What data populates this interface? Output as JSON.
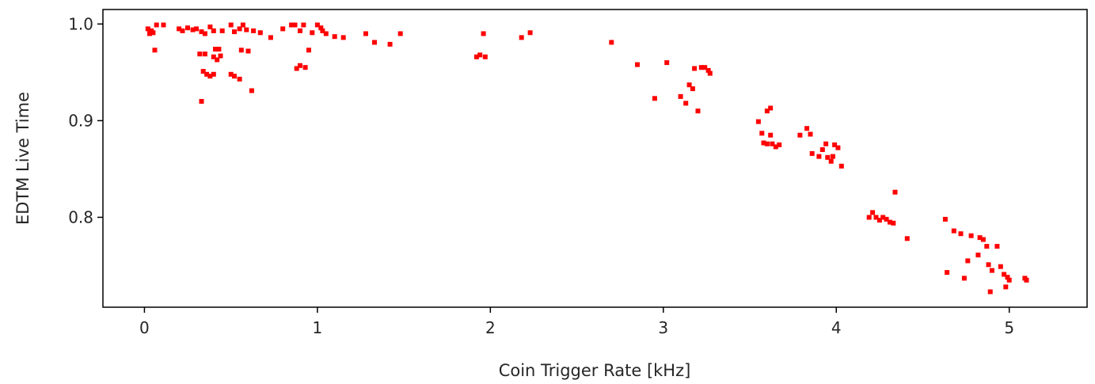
{
  "chart_data": {
    "type": "scatter",
    "xlabel": "Coin Trigger Rate [kHz]",
    "ylabel": "EDTM Live Time",
    "xlim": [
      -0.24,
      5.45
    ],
    "ylim": [
      0.707,
      1.015
    ],
    "xticks": [
      0,
      1,
      2,
      3,
      4,
      5
    ],
    "xtick_labels": [
      "0",
      "1",
      "2",
      "3",
      "4",
      "5"
    ],
    "yticks": [
      0.8,
      0.9,
      1.0
    ],
    "ytick_labels": [
      "0.8",
      "0.9",
      "1.0"
    ],
    "marker_color": "#ff0000",
    "grid": false,
    "legend": "none",
    "points": [
      [
        0.02,
        0.995
      ],
      [
        0.03,
        0.99
      ],
      [
        0.04,
        0.993
      ],
      [
        0.05,
        0.991
      ],
      [
        0.07,
        0.999
      ],
      [
        0.06,
        0.973
      ],
      [
        0.11,
        0.999
      ],
      [
        0.2,
        0.995
      ],
      [
        0.22,
        0.993
      ],
      [
        0.25,
        0.996
      ],
      [
        0.28,
        0.994
      ],
      [
        0.3,
        0.995
      ],
      [
        0.33,
        0.992
      ],
      [
        0.35,
        0.99
      ],
      [
        0.38,
        0.997
      ],
      [
        0.4,
        0.993
      ],
      [
        0.45,
        0.993
      ],
      [
        0.5,
        0.999
      ],
      [
        0.52,
        0.992
      ],
      [
        0.55,
        0.995
      ],
      [
        0.57,
        0.999
      ],
      [
        0.59,
        0.994
      ],
      [
        0.63,
        0.993
      ],
      [
        0.67,
        0.991
      ],
      [
        0.73,
        0.986
      ],
      [
        0.8,
        0.995
      ],
      [
        0.85,
        0.999
      ],
      [
        0.87,
        0.999
      ],
      [
        0.9,
        0.993
      ],
      [
        0.92,
        0.999
      ],
      [
        0.97,
        0.991
      ],
      [
        1.0,
        0.999
      ],
      [
        1.02,
        0.996
      ],
      [
        1.03,
        0.993
      ],
      [
        1.05,
        0.99
      ],
      [
        1.1,
        0.987
      ],
      [
        1.15,
        0.986
      ],
      [
        1.28,
        0.99
      ],
      [
        1.33,
        0.981
      ],
      [
        1.42,
        0.979
      ],
      [
        1.48,
        0.99
      ],
      [
        0.32,
        0.969
      ],
      [
        0.35,
        0.969
      ],
      [
        0.41,
        0.974
      ],
      [
        0.43,
        0.974
      ],
      [
        0.4,
        0.966
      ],
      [
        0.42,
        0.963
      ],
      [
        0.44,
        0.967
      ],
      [
        0.34,
        0.951
      ],
      [
        0.36,
        0.948
      ],
      [
        0.38,
        0.946
      ],
      [
        0.4,
        0.948
      ],
      [
        0.5,
        0.948
      ],
      [
        0.52,
        0.946
      ],
      [
        0.55,
        0.943
      ],
      [
        0.56,
        0.973
      ],
      [
        0.6,
        0.972
      ],
      [
        0.62,
        0.931
      ],
      [
        0.33,
        0.92
      ],
      [
        0.88,
        0.954
      ],
      [
        0.9,
        0.957
      ],
      [
        0.93,
        0.955
      ],
      [
        0.95,
        0.973
      ],
      [
        1.92,
        0.966
      ],
      [
        1.94,
        0.968
      ],
      [
        1.97,
        0.966
      ],
      [
        1.96,
        0.99
      ],
      [
        2.18,
        0.986
      ],
      [
        2.23,
        0.991
      ],
      [
        2.7,
        0.981
      ],
      [
        2.85,
        0.958
      ],
      [
        3.02,
        0.96
      ],
      [
        2.95,
        0.923
      ],
      [
        3.1,
        0.925
      ],
      [
        3.13,
        0.918
      ],
      [
        3.15,
        0.937
      ],
      [
        3.17,
        0.933
      ],
      [
        3.18,
        0.954
      ],
      [
        3.2,
        0.91
      ],
      [
        3.22,
        0.955
      ],
      [
        3.24,
        0.955
      ],
      [
        3.26,
        0.952
      ],
      [
        3.27,
        0.949
      ],
      [
        3.55,
        0.899
      ],
      [
        3.57,
        0.887
      ],
      [
        3.6,
        0.91
      ],
      [
        3.62,
        0.913
      ],
      [
        3.58,
        0.877
      ],
      [
        3.6,
        0.876
      ],
      [
        3.63,
        0.876
      ],
      [
        3.65,
        0.873
      ],
      [
        3.67,
        0.875
      ],
      [
        3.62,
        0.885
      ],
      [
        3.79,
        0.885
      ],
      [
        3.83,
        0.892
      ],
      [
        3.85,
        0.886
      ],
      [
        3.86,
        0.866
      ],
      [
        3.9,
        0.863
      ],
      [
        3.92,
        0.87
      ],
      [
        3.94,
        0.876
      ],
      [
        3.95,
        0.862
      ],
      [
        3.97,
        0.858
      ],
      [
        3.98,
        0.863
      ],
      [
        3.99,
        0.875
      ],
      [
        4.01,
        0.872
      ],
      [
        4.03,
        0.853
      ],
      [
        4.19,
        0.8
      ],
      [
        4.21,
        0.805
      ],
      [
        4.23,
        0.8
      ],
      [
        4.25,
        0.797
      ],
      [
        4.27,
        0.8
      ],
      [
        4.29,
        0.798
      ],
      [
        4.31,
        0.795
      ],
      [
        4.33,
        0.794
      ],
      [
        4.34,
        0.826
      ],
      [
        4.41,
        0.778
      ],
      [
        4.63,
        0.798
      ],
      [
        4.64,
        0.743
      ],
      [
        4.68,
        0.786
      ],
      [
        4.72,
        0.783
      ],
      [
        4.74,
        0.737
      ],
      [
        4.76,
        0.755
      ],
      [
        4.78,
        0.781
      ],
      [
        4.82,
        0.761
      ],
      [
        4.83,
        0.779
      ],
      [
        4.85,
        0.777
      ],
      [
        4.87,
        0.77
      ],
      [
        4.88,
        0.751
      ],
      [
        4.9,
        0.745
      ],
      [
        4.89,
        0.723
      ],
      [
        4.93,
        0.77
      ],
      [
        4.95,
        0.749
      ],
      [
        4.97,
        0.741
      ],
      [
        4.98,
        0.728
      ],
      [
        4.99,
        0.738
      ],
      [
        5.0,
        0.735
      ],
      [
        5.09,
        0.737
      ],
      [
        5.1,
        0.735
      ]
    ]
  }
}
